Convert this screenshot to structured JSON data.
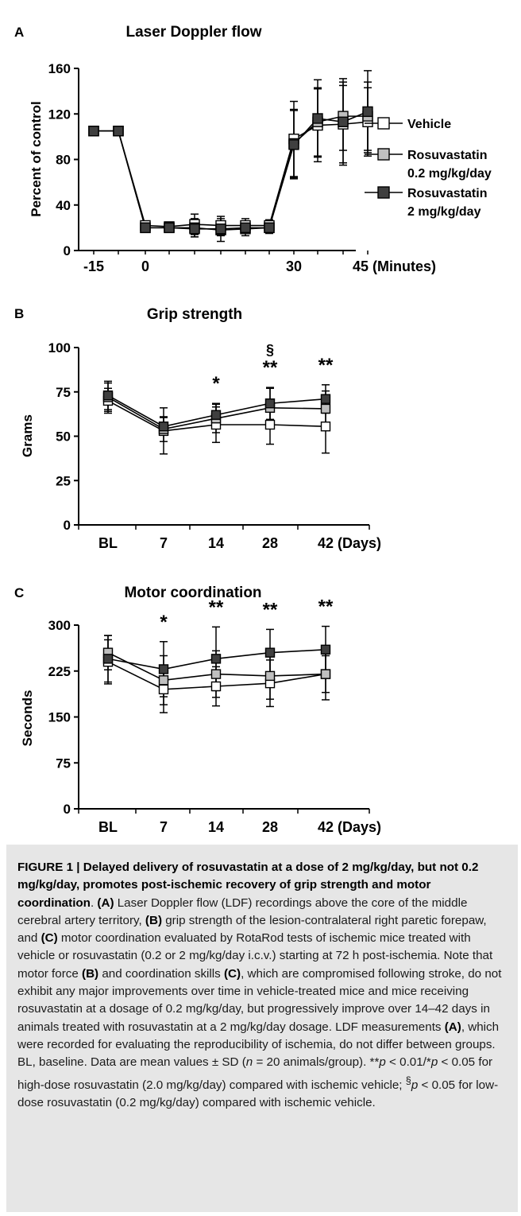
{
  "panels": [
    {
      "letter": "A",
      "chart_data": {
        "type": "line",
        "title": "Laser Doppler flow",
        "ylabel": "Percent of control",
        "xlabel": "",
        "ylim": [
          0,
          160
        ],
        "yticks": [
          "0",
          "40",
          "80",
          "120",
          "160"
        ],
        "x": [
          -15,
          -10,
          0,
          5,
          10,
          15,
          20,
          25,
          30,
          35,
          40,
          45
        ],
        "xticks": [
          "-15",
          "0",
          "30",
          "45 (Minutes)"
        ],
        "series": [
          {
            "name": "Vehicle",
            "color": "#ffffff",
            "values": [
              105,
              105,
              22,
              21,
              23,
              22,
              22,
              22,
              98,
              110,
              111,
              113
            ],
            "sd": [
              0,
              0,
              4,
              4,
              9,
              8,
              6,
              5,
              33,
              32,
              34,
              30
            ]
          },
          {
            "name": "Rosuvastatin 0.2 mg/kg/day",
            "color": "#bfbfbf",
            "values": [
              105,
              105,
              20,
              20,
              20,
              18,
              19,
              20,
              94,
              113,
              118,
              118
            ],
            "sd": [
              0,
              0,
              4,
              4,
              8,
              10,
              6,
              5,
              30,
              30,
              30,
              30
            ]
          },
          {
            "name": "Rosuvastatin 2 mg/kg/day",
            "color": "#3f3f3f",
            "values": [
              105,
              105,
              20,
              20,
              19,
              19,
              20,
              20,
              93,
              116,
              113,
              122
            ],
            "sd": [
              0,
              0,
              4,
              4,
              7,
              6,
              5,
              4,
              30,
              34,
              38,
              36
            ]
          }
        ],
        "legend": [
          {
            "label": "Vehicle",
            "sublabel": ""
          },
          {
            "label": "Rosuvastatin",
            "sublabel": "0.2 mg/kg/day"
          },
          {
            "label": "Rosuvastatin",
            "sublabel": "2 mg/kg/day"
          }
        ],
        "legend_position": "right"
      }
    },
    {
      "letter": "B",
      "chart_data": {
        "type": "line",
        "title": "Grip strength",
        "ylabel": "Grams",
        "xlabel": "",
        "ylim": [
          0,
          100
        ],
        "yticks": [
          "0",
          "25",
          "50",
          "75",
          "100"
        ],
        "categories": [
          "BL",
          "7",
          "14",
          "28",
          "42 (Days)"
        ],
        "series": [
          {
            "name": "Vehicle",
            "color": "#ffffff",
            "values": [
              70,
              53,
              56.5,
              56.5,
              55.5
            ],
            "sd": [
              7,
              13,
              10,
              11,
              15
            ]
          },
          {
            "name": "Rosuvastatin 0.2 mg/kg/day",
            "color": "#bfbfbf",
            "values": [
              72,
              54,
              60,
              66,
              65.5
            ],
            "sd": [
              8,
              7,
              8,
              11,
              10
            ]
          },
          {
            "name": "Rosuvastatin 2 mg/kg/day",
            "color": "#3f3f3f",
            "values": [
              73,
              55.5,
              62,
              68.5,
              71
            ],
            "sd": [
              8,
              5,
              6.5,
              9,
              8
            ]
          }
        ],
        "annotations": [
          {
            "category": "14",
            "text": "*"
          },
          {
            "category": "28",
            "text": "**"
          },
          {
            "category": "28",
            "text": "§"
          },
          {
            "category": "42 (Days)",
            "text": "**"
          }
        ]
      }
    },
    {
      "letter": "C",
      "chart_data": {
        "type": "line",
        "title": "Motor coordination",
        "ylabel": "Seconds",
        "xlabel": "",
        "ylim": [
          0,
          300
        ],
        "yticks": [
          "0",
          "75",
          "150",
          "225",
          "300"
        ],
        "categories": [
          "BL",
          "7",
          "14",
          "28",
          "42 (Days)"
        ],
        "series": [
          {
            "name": "Vehicle",
            "color": "#ffffff",
            "values": [
              240,
              195,
              200,
              205,
              220
            ],
            "sd": [
              36,
              38,
              32,
              38,
              42
            ]
          },
          {
            "name": "Rosuvastatin 0.2 mg/kg/day",
            "color": "#bfbfbf",
            "values": [
              255,
              210,
              220,
              217,
              220
            ],
            "sd": [
              28,
              40,
              38,
              38,
              30
            ]
          },
          {
            "name": "Rosuvastatin 2 mg/kg/day",
            "color": "#3f3f3f",
            "values": [
              245,
              228,
              245,
              255,
              260
            ],
            "sd": [
              38,
              45,
              52,
              38,
              38
            ]
          }
        ],
        "annotations": [
          {
            "category": "7",
            "text": "*"
          },
          {
            "category": "14",
            "text": "**"
          },
          {
            "category": "28",
            "text": "**"
          },
          {
            "category": "42 (Days)",
            "text": "**"
          }
        ]
      }
    }
  ],
  "caption": {
    "title": "FIGURE 1 | Delayed delivery of rosuvastatin at a dose of 2 mg/kg/day, but not 0.2 mg/kg/day, promotes post-ischemic recovery of grip strength and motor coordination",
    "s1": ". ",
    "a1": "(A)",
    "s2": " Laser Doppler flow (LDF) recordings above the core of the middle cerebral artery territory, ",
    "b1": "(B)",
    "s3": " grip strength of the lesion-contralateral right paretic forepaw, and ",
    "c1": "(C)",
    "s4": " motor coordination evaluated by RotaRod tests of ischemic mice treated with vehicle or rosuvastatin (0.2 or 2 mg/kg/day i.c.v.) starting at 72 h post-ischemia. Note that motor force ",
    "b2": "(B)",
    "s5": " and coordination skills ",
    "c2": "(C)",
    "s6": ", which are compromised following stroke, do not exhibit any major improvements over time in vehicle-treated mice and mice receiving rosuvastatin at a dosage of 0.2 mg/kg/day, but progressively improve over 14–42 days in animals treated with rosuvastatin at a 2 mg/kg/day dosage. LDF measurements ",
    "a2": "(A)",
    "s7": ", which were recorded for evaluating the reproducibility of ischemia, do not differ between groups. BL, baseline. Data are mean values ± SD (",
    "n": "n",
    "s8": " = 20 animals/group). **",
    "p1": "p",
    "s9": " < 0.01/*",
    "p2": "p",
    "s10": " < 0.05 for high-dose rosuvastatin (2.0 mg/kg/day) compared with ischemic vehicle; ",
    "sect": "§",
    "p3": "p",
    "s11": " < 0.05 for low-dose rosuvastatin (0.2 mg/kg/day) compared with ischemic vehicle."
  }
}
